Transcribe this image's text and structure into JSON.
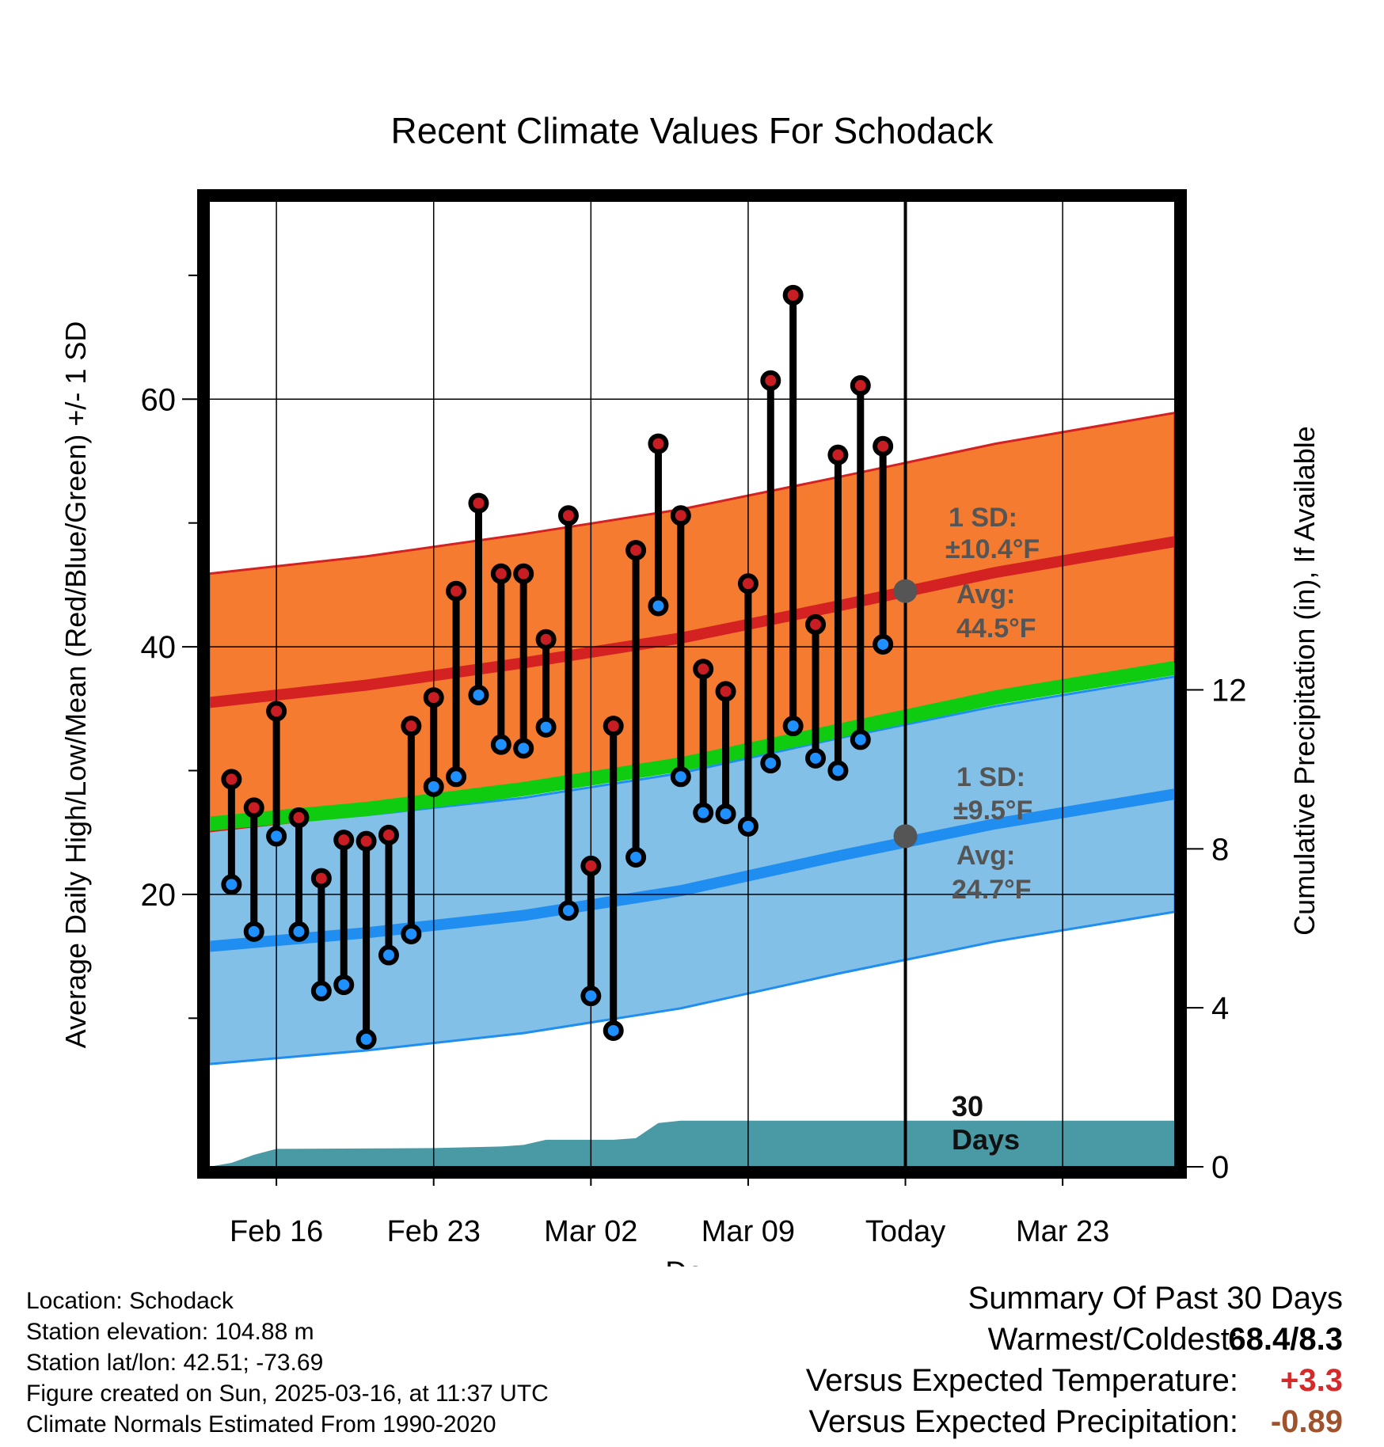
{
  "chart_data": {
    "type": "line",
    "title": "Recent Climate Values For Schodack",
    "xlabel": "Day",
    "ylabel_left": "Average Daily High/Low/Mean (Red/Blue/Green) +/- 1 SD",
    "ylabel_right": "Cumulative Precipitation (in), If Available",
    "x_ticks": [
      "Feb 16",
      "Feb 23",
      "Mar 02",
      "Mar 09",
      "Today",
      "Mar 23"
    ],
    "y_left_ticks": [
      "20",
      "40",
      "60"
    ],
    "y_right_ticks": [
      "0",
      "4",
      "8",
      "12"
    ],
    "x_range_days": [
      "2025-02-13",
      "2025-03-28"
    ],
    "y_left_range": [
      -2,
      76
    ],
    "y_right_range": [
      0,
      24.3
    ],
    "today": "2025-03-16",
    "dates": [
      "2025-02-14",
      "2025-02-15",
      "2025-02-16",
      "2025-02-17",
      "2025-02-18",
      "2025-02-19",
      "2025-02-20",
      "2025-02-21",
      "2025-02-22",
      "2025-02-23",
      "2025-02-24",
      "2025-02-25",
      "2025-02-26",
      "2025-02-27",
      "2025-02-28",
      "2025-03-01",
      "2025-03-02",
      "2025-03-03",
      "2025-03-04",
      "2025-03-05",
      "2025-03-06",
      "2025-03-07",
      "2025-03-08",
      "2025-03-09",
      "2025-03-10",
      "2025-03-11",
      "2025-03-12",
      "2025-03-13",
      "2025-03-14",
      "2025-03-15"
    ],
    "series": [
      {
        "name": "High",
        "values": [
          29.3,
          27.0,
          34.8,
          26.2,
          21.3,
          24.4,
          24.3,
          24.8,
          33.6,
          35.9,
          44.5,
          51.6,
          45.9,
          45.9,
          40.6,
          50.6,
          22.3,
          33.6,
          47.8,
          56.4,
          50.6,
          38.2,
          36.4,
          45.1,
          61.5,
          68.4,
          41.8,
          55.5,
          61.1,
          56.2
        ]
      },
      {
        "name": "Low",
        "values": [
          20.8,
          17.0,
          24.7,
          17.0,
          12.2,
          12.7,
          8.3,
          15.1,
          16.8,
          28.7,
          29.5,
          36.1,
          32.1,
          31.8,
          33.5,
          18.7,
          11.8,
          9.0,
          23.0,
          43.3,
          29.5,
          26.6,
          26.5,
          25.5,
          30.6,
          33.6,
          31.0,
          30.0,
          32.5,
          40.2
        ]
      }
    ],
    "normals": {
      "dates": [
        "2025-02-13",
        "2025-02-20",
        "2025-02-27",
        "2025-03-06",
        "2025-03-13",
        "2025-03-20",
        "2025-03-28"
      ],
      "high_mean": [
        35.5,
        36.9,
        38.7,
        40.7,
        43.3,
        46.0,
        48.5
      ],
      "high_sd_band": [
        [
          25.1,
          45.9
        ],
        [
          26.5,
          47.3
        ],
        [
          28.3,
          49.1
        ],
        [
          30.3,
          51.1
        ],
        [
          32.9,
          53.7
        ],
        [
          35.6,
          56.4
        ],
        [
          38.1,
          58.9
        ]
      ],
      "low_mean": [
        15.8,
        16.9,
        18.3,
        20.3,
        23.1,
        25.7,
        28.1
      ],
      "low_sd_band": [
        [
          6.3,
          25.3
        ],
        [
          7.4,
          26.4
        ],
        [
          8.8,
          27.8
        ],
        [
          10.8,
          29.8
        ],
        [
          13.6,
          32.6
        ],
        [
          16.2,
          35.2
        ],
        [
          18.6,
          37.6
        ]
      ],
      "mean": [
        25.7,
        26.9,
        28.5,
        30.5,
        33.2,
        35.9,
        38.3
      ]
    },
    "precipitation": {
      "dates": [
        "2025-02-13",
        "2025-02-14",
        "2025-02-15",
        "2025-02-16",
        "2025-02-23",
        "2025-02-26",
        "2025-02-27",
        "2025-02-28",
        "2025-03-03",
        "2025-03-04",
        "2025-03-05",
        "2025-03-06",
        "2025-03-28"
      ],
      "cumulative": [
        0,
        0.1,
        0.3,
        0.45,
        0.47,
        0.51,
        0.55,
        0.68,
        0.68,
        0.72,
        1.1,
        1.16,
        1.16
      ]
    },
    "annotations": {
      "high_sd_label": "1 SD:",
      "high_sd_value": "±10.4°F",
      "high_avg_label": "Avg:",
      "high_avg_value": "44.5°F",
      "low_sd_label": "1 SD:",
      "low_sd_value": "±9.5°F",
      "low_avg_label": "Avg:",
      "low_avg_value": "24.7°F",
      "precip_label_1": "30",
      "precip_label_2": "Days"
    },
    "high_avg_today": 44.5,
    "low_avg_today": 24.7,
    "colors": {
      "high_band": "#f47b30",
      "high_line": "#d42121",
      "low_band": "#83c0e8",
      "low_line": "#1f8ef0",
      "mean_line": "#10cc10",
      "precip": "#4a9aa5",
      "high_marker": "#c81d22",
      "low_marker": "#1e90ff",
      "annotation": "#555555"
    },
    "grid": true
  },
  "info": {
    "location": "Location: Schodack",
    "elevation": "Station elevation: 104.88 m",
    "latlon": "Station lat/lon: 42.51; -73.69",
    "created": "Figure created on Sun, 2025-03-16, at 11:37 UTC",
    "normals": "Climate Normals Estimated From 1990-2020"
  },
  "summary": {
    "title": "Summary Of Past 30 Days",
    "warmest_label": "Warmest/Coldest:",
    "warmest_value": "68.4/8.3",
    "temp_label": "Versus Expected Temperature:",
    "temp_value": "+3.3",
    "temp_color": "#d42a2a",
    "precip_label": "Versus Expected Precipitation:",
    "precip_value": "-0.89",
    "precip_color": "#a0522d"
  }
}
